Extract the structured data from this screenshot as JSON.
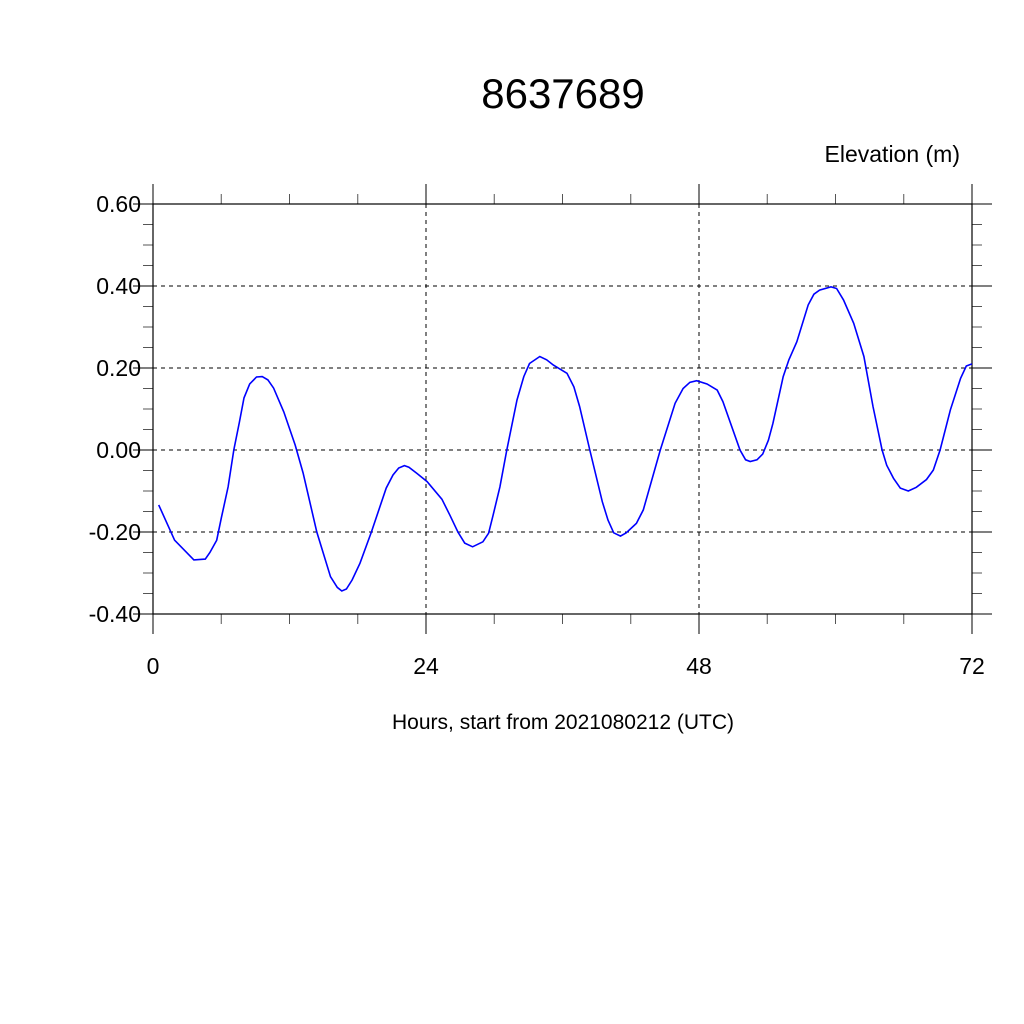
{
  "chart_data": {
    "type": "line",
    "title": "8637689",
    "ylabel": "Elevation (m)",
    "xlabel": "Hours, start from 2021080212 (UTC)",
    "xlim": [
      0,
      72
    ],
    "ylim": [
      -0.4,
      0.6
    ],
    "x_ticks": [
      0,
      24,
      48,
      72
    ],
    "x_tick_labels": [
      "0",
      "24",
      "48",
      "72"
    ],
    "x_minor_step": 6,
    "y_ticks": [
      -0.4,
      -0.2,
      0.0,
      0.2,
      0.4,
      0.6
    ],
    "y_tick_labels": [
      "-0.40",
      "-0.20",
      "0.00",
      "0.20",
      "0.40",
      "0.60"
    ],
    "y_minor_step": 0.05,
    "grid": true,
    "line_color": "#0000ff",
    "series": [
      {
        "x": [
          0.5,
          1.9,
          3.6,
          4.6,
          5.0,
          5.6,
          6.0,
          6.6,
          7.1,
          7.6,
          8.0,
          8.5,
          9.1,
          9.6,
          10.1,
          10.6,
          11.5,
          12.5,
          13.2,
          14.4,
          15.6,
          16.2,
          16.6,
          17.0,
          17.5,
          18.2,
          19.2,
          20.5,
          21.1,
          21.6,
          22.1,
          22.5,
          23.2,
          24.1,
          25.4,
          26.1,
          26.8,
          27.4,
          28.1,
          29.0,
          29.5,
          29.9,
          30.5,
          31.1,
          32.0,
          32.6,
          33.1,
          34.0,
          34.6,
          35.2,
          35.8,
          36.4,
          37.0,
          37.5,
          38.4,
          39.5,
          40.0,
          40.5,
          41.1,
          41.6,
          42.5,
          43.1,
          44.6,
          45.9,
          46.6,
          47.2,
          47.8,
          48.7,
          49.6,
          50.1,
          51.6,
          52.1,
          52.5,
          53.1,
          53.6,
          54.1,
          54.5,
          55.4,
          55.9,
          56.6,
          57.6,
          58.1,
          58.6,
          59.6,
          60.1,
          60.7,
          61.6,
          62.5,
          63.3,
          64.1,
          64.5,
          65.1,
          65.7,
          66.4,
          67.1,
          68.0,
          68.6,
          69.2,
          70.1,
          71.0,
          71.5,
          72.0
        ],
        "y": [
          -0.134,
          -0.22,
          -0.268,
          -0.266,
          -0.25,
          -0.22,
          -0.166,
          -0.09,
          0.0,
          0.068,
          0.127,
          0.161,
          0.178,
          0.179,
          0.171,
          0.151,
          0.093,
          0.012,
          -0.056,
          -0.2,
          -0.309,
          -0.335,
          -0.344,
          -0.339,
          -0.317,
          -0.276,
          -0.2,
          -0.093,
          -0.061,
          -0.044,
          -0.038,
          -0.042,
          -0.057,
          -0.077,
          -0.12,
          -0.159,
          -0.2,
          -0.227,
          -0.236,
          -0.224,
          -0.203,
          -0.159,
          -0.09,
          0.0,
          0.122,
          0.179,
          0.211,
          0.228,
          0.22,
          0.207,
          0.197,
          0.187,
          0.154,
          0.106,
          0.0,
          -0.126,
          -0.171,
          -0.202,
          -0.21,
          -0.202,
          -0.179,
          -0.146,
          0.0,
          0.114,
          0.15,
          0.165,
          0.169,
          0.161,
          0.146,
          0.118,
          0.0,
          -0.024,
          -0.028,
          -0.024,
          -0.01,
          0.024,
          0.065,
          0.179,
          0.22,
          0.264,
          0.354,
          0.38,
          0.39,
          0.398,
          0.394,
          0.366,
          0.309,
          0.228,
          0.106,
          0.0,
          -0.037,
          -0.069,
          -0.093,
          -0.1,
          -0.091,
          -0.072,
          -0.049,
          0.0,
          0.098,
          0.175,
          0.205,
          0.21
        ]
      }
    ]
  }
}
